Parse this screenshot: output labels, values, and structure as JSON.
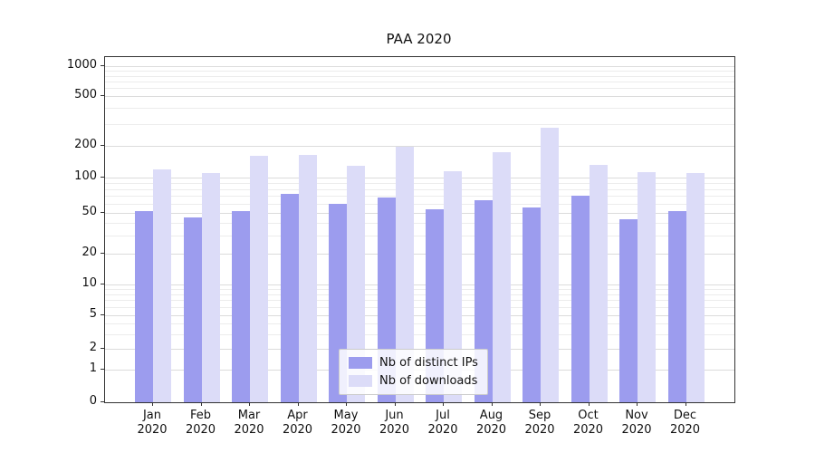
{
  "chart_data": {
    "type": "bar",
    "title": "PAA 2020",
    "categories": [
      "Jan",
      "Feb",
      "Mar",
      "Apr",
      "May",
      "Jun",
      "Jul",
      "Aug",
      "Sep",
      "Oct",
      "Nov",
      "Dec"
    ],
    "year": "2020",
    "series": [
      {
        "name": "Nb of distinct IPs",
        "color": "#9c9cee",
        "values": [
          52,
          45,
          52,
          72,
          60,
          68,
          54,
          64,
          56,
          70,
          43,
          52
        ]
      },
      {
        "name": "Nb of downloads",
        "color": "#dcdcf8",
        "values": [
          120,
          110,
          160,
          165,
          130,
          198,
          115,
          175,
          280,
          133,
          112,
          110
        ]
      }
    ],
    "y_ticks": [
      0,
      1,
      2,
      5,
      10,
      20,
      50,
      100,
      200,
      500,
      1000
    ],
    "y_scale": "symlog",
    "ylim": [
      0,
      1000
    ],
    "grid": "horizontal",
    "legend_position": "inside-bottom-center"
  }
}
